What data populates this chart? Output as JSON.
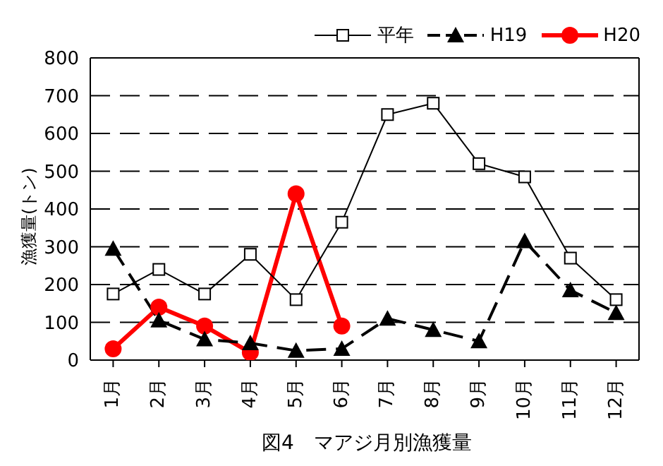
{
  "chart_data": {
    "type": "line",
    "title": "図4　マアジ月別漁獲量",
    "ylabel": "漁獲量(トン)",
    "categories": [
      "1月",
      "2月",
      "3月",
      "4月",
      "5月",
      "6月",
      "7月",
      "8月",
      "9月",
      "10月",
      "11月",
      "12月"
    ],
    "series": [
      {
        "name": "平年",
        "color": "#000000",
        "marker": "square",
        "line_style": "solid",
        "values": [
          175,
          240,
          175,
          280,
          160,
          365,
          650,
          680,
          520,
          485,
          270,
          160
        ]
      },
      {
        "name": "H19",
        "color": "#000000",
        "marker": "triangle",
        "line_style": "dashed",
        "values": [
          295,
          105,
          55,
          45,
          25,
          30,
          110,
          80,
          50,
          315,
          185,
          125
        ]
      },
      {
        "name": "H20",
        "color": "#ff0000",
        "marker": "circle",
        "line_style": "solid",
        "values": [
          30,
          140,
          90,
          20,
          440,
          90,
          null,
          null,
          null,
          null,
          null,
          null
        ]
      }
    ],
    "ylim": [
      0,
      800
    ],
    "yticks": [
      0,
      100,
      200,
      300,
      400,
      500,
      600,
      700,
      800
    ],
    "grid": "y",
    "legend": "top right"
  }
}
